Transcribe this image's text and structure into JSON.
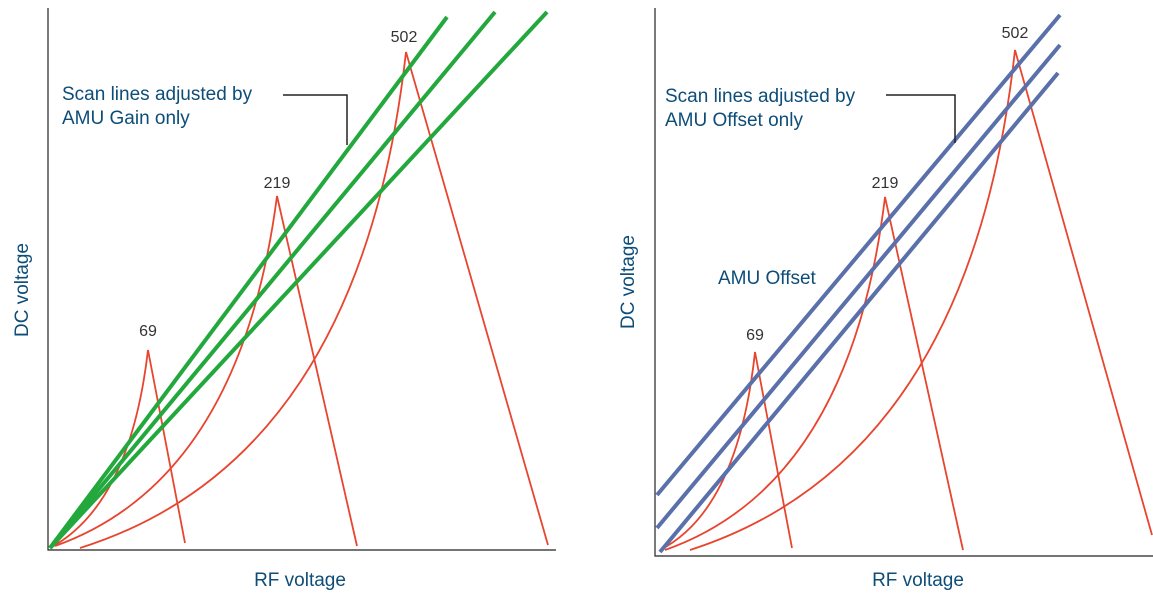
{
  "left_panel": {
    "y_axis_label": "DC voltage",
    "x_axis_label": "RF voltage",
    "annotation": [
      "Scan lines adjusted by",
      "AMU Gain only"
    ],
    "peaks": [
      "69",
      "219",
      "502"
    ]
  },
  "right_panel": {
    "y_axis_label": "DC voltage",
    "x_axis_label": "RF voltage",
    "annotation": [
      "Scan lines adjusted by",
      "AMU Offset only"
    ],
    "offset_label": "AMU Offset",
    "peaks": [
      "69",
      "219",
      "502"
    ]
  }
}
